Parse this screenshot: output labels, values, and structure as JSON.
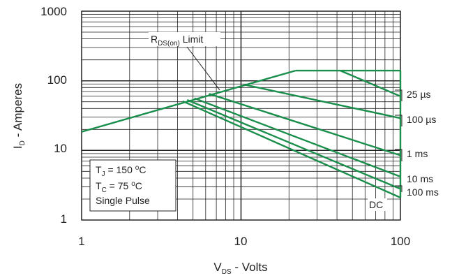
{
  "chart_data": {
    "type": "line",
    "x_scale": "log",
    "y_scale": "log",
    "xlim": [
      1,
      100
    ],
    "ylim": [
      1,
      1000
    ],
    "grid": true,
    "x_tick_labels": [
      "1",
      "10",
      "100"
    ],
    "y_tick_labels": [
      "1",
      "10",
      "100",
      "1000"
    ],
    "xlabel": {
      "main": "V",
      "sub": "DS",
      "rest": " - Volts"
    },
    "ylabel": {
      "main": "I",
      "sub": "D",
      "rest": " - Amperes"
    },
    "line_color": "#1a8f4c",
    "series": [
      {
        "name": "R_DS(on) Limit",
        "points": [
          [
            1,
            18.5
          ],
          [
            22,
            140
          ]
        ]
      },
      {
        "name": "25 µs",
        "points": [
          [
            42,
            140
          ],
          [
            100,
            60
          ]
        ]
      },
      {
        "name": "100 µs",
        "points": [
          [
            10.5,
            88
          ],
          [
            100,
            29
          ]
        ]
      },
      {
        "name": "1 ms",
        "points": [
          [
            6.3,
            65
          ],
          [
            100,
            8.5
          ]
        ]
      },
      {
        "name": "10 ms",
        "points": [
          [
            5.1,
            56
          ],
          [
            100,
            4.2
          ]
        ]
      },
      {
        "name": "100 ms",
        "points": [
          [
            4.6,
            53
          ],
          [
            100,
            2.8
          ]
        ]
      },
      {
        "name": "DC",
        "points": [
          [
            4.3,
            51
          ],
          [
            100,
            2.1
          ]
        ]
      },
      {
        "name": "",
        "points": [
          [
            22,
            140
          ],
          [
            100,
            140
          ],
          [
            100,
            2.1
          ]
        ]
      }
    ],
    "annotations": {
      "rds": {
        "main": "R",
        "sub": "DS(on)",
        "rest": " Limit"
      },
      "curve_labels": [
        "25 µs",
        "100 µs",
        "1 ms",
        "10 ms",
        "100 ms",
        "DC"
      ],
      "conditions": {
        "tj": {
          "main": "T",
          "sub": "J",
          "rest": " = 150 ",
          "sup": "o",
          "unit": "C"
        },
        "tc": {
          "main": "T",
          "sub": "C",
          "rest": " = 75 ",
          "sup": "o",
          "unit": "C"
        },
        "pulse": "Single Pulse"
      }
    }
  }
}
